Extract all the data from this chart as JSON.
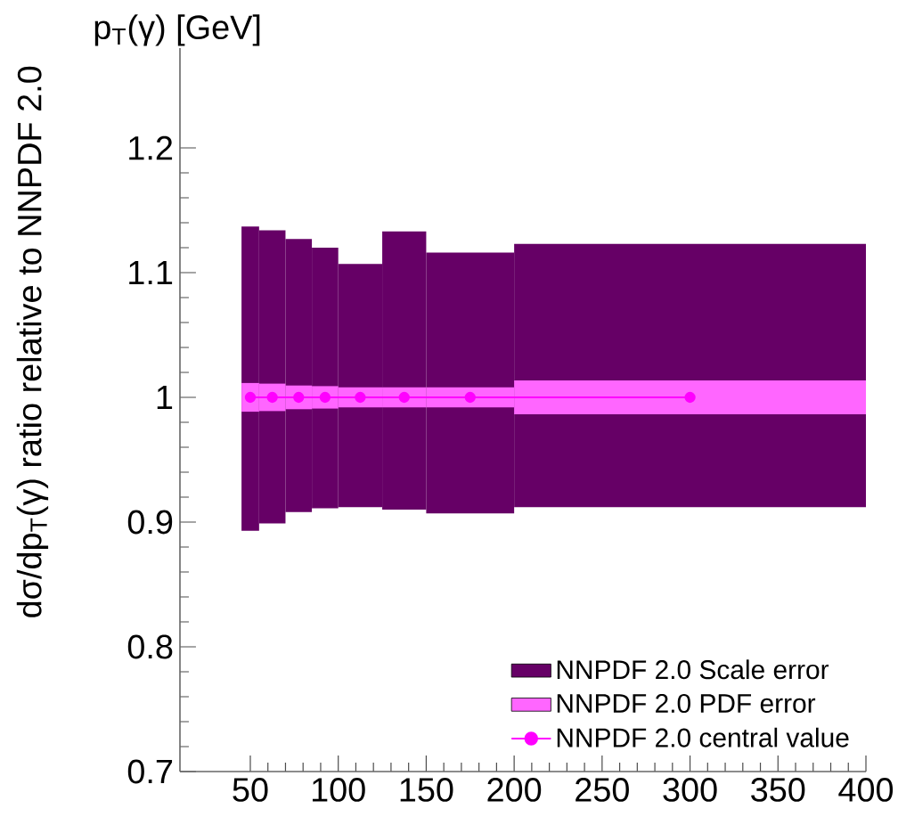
{
  "chart_data": {
    "type": "line",
    "xlabel": "p$_{T}$(γ) [GeV]",
    "ylabel": "dσ/dp$_{T}$(γ) ratio relative to NNPDF 2.0",
    "xlim": [
      10,
      400
    ],
    "ylim": [
      0.7,
      1.28
    ],
    "xticks": [
      50,
      100,
      150,
      200,
      250,
      300,
      350,
      400
    ],
    "yticks": [
      0.7,
      0.8,
      0.9,
      1,
      1.1,
      1.2
    ],
    "legend": "bottom right",
    "series": [
      {
        "type": "histogram",
        "name": "NNPDF 2.0 Scale error",
        "color": "#660066",
        "bins": [
          45,
          55,
          70,
          85,
          100,
          125,
          150,
          200,
          400
        ],
        "base": [
          0.893,
          0.899,
          0.908,
          0.911,
          0.912,
          0.91,
          0.907,
          0.912
        ],
        "values": [
          0.244,
          0.235,
          0.219,
          0.209,
          0.195,
          0.223,
          0.209,
          0.211
        ]
      },
      {
        "type": "histogram",
        "name": "NNPDF 2.0 PDF error",
        "color": "#ff66ff",
        "bins": [
          45,
          55,
          70,
          85,
          100,
          125,
          150,
          200,
          400
        ],
        "base": [
          0.9885,
          0.989,
          0.9905,
          0.991,
          0.992,
          0.992,
          0.992,
          0.9865
        ],
        "values": [
          0.023,
          0.022,
          0.019,
          0.018,
          0.016,
          0.016,
          0.016,
          0.027
        ]
      },
      {
        "name": "NNPDF 2.0 central value",
        "color": "#ff00ff",
        "marker": "circle",
        "x": [
          50,
          62.5,
          77.5,
          92.5,
          112.5,
          137.5,
          175,
          300
        ],
        "values": [
          1,
          1,
          1,
          1,
          1,
          1,
          1,
          1
        ]
      }
    ]
  }
}
